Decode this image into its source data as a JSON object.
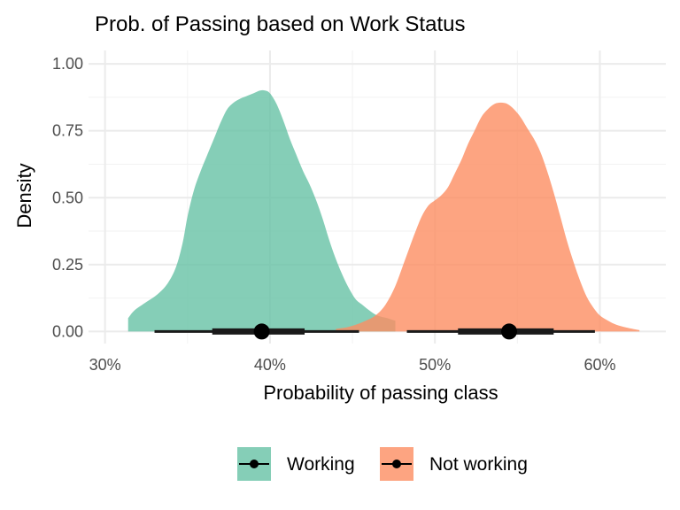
{
  "chart_data": {
    "type": "area",
    "title": "Prob. of Passing based on Work Status",
    "xlabel": "Probability of passing class",
    "ylabel": "Density",
    "xlim": [
      0.29,
      0.64
    ],
    "ylim": [
      -0.045,
      1.05
    ],
    "x_ticks": [
      0.3,
      0.4,
      0.5,
      0.6
    ],
    "x_tick_labels": [
      "30%",
      "40%",
      "50%",
      "60%"
    ],
    "y_ticks": [
      0,
      0.25,
      0.5,
      0.75,
      1.0
    ],
    "y_tick_labels": [
      "0.00",
      "0.25",
      "0.50",
      "0.75",
      "1.00"
    ],
    "grid": true,
    "legend_position": "bottom",
    "series": [
      {
        "name": "Working",
        "color": "#66c2a5",
        "density": {
          "x": [
            0.314,
            0.318,
            0.325,
            0.332,
            0.338,
            0.343,
            0.347,
            0.35,
            0.354,
            0.358,
            0.362,
            0.366,
            0.37,
            0.374,
            0.378,
            0.382,
            0.386,
            0.39,
            0.394,
            0.397,
            0.4,
            0.404,
            0.408,
            0.412,
            0.416,
            0.42,
            0.424,
            0.428,
            0.432,
            0.436,
            0.44,
            0.444,
            0.448,
            0.452,
            0.456,
            0.46,
            0.465,
            0.471,
            0.476
          ],
          "y": [
            0.05,
            0.08,
            0.11,
            0.14,
            0.18,
            0.24,
            0.33,
            0.43,
            0.53,
            0.6,
            0.66,
            0.72,
            0.78,
            0.83,
            0.855,
            0.87,
            0.88,
            0.89,
            0.9,
            0.9,
            0.89,
            0.85,
            0.79,
            0.72,
            0.66,
            0.6,
            0.55,
            0.49,
            0.42,
            0.34,
            0.27,
            0.21,
            0.16,
            0.12,
            0.1,
            0.08,
            0.06,
            0.05,
            0.04
          ]
        },
        "interval": {
          "point": 0.395,
          "inner": [
            0.365,
            0.421
          ],
          "outer": [
            0.33,
            0.454
          ]
        }
      },
      {
        "name": "Not working",
        "color": "#fc8d62",
        "density": {
          "x": [
            0.44,
            0.446,
            0.452,
            0.458,
            0.464,
            0.47,
            0.476,
            0.482,
            0.488,
            0.492,
            0.496,
            0.5,
            0.504,
            0.508,
            0.512,
            0.516,
            0.52,
            0.524,
            0.528,
            0.532,
            0.536,
            0.54,
            0.544,
            0.548,
            0.552,
            0.556,
            0.56,
            0.564,
            0.568,
            0.572,
            0.576,
            0.58,
            0.584,
            0.588,
            0.592,
            0.596,
            0.6,
            0.605,
            0.61,
            0.616,
            0.624
          ],
          "y": [
            0.01,
            0.015,
            0.025,
            0.04,
            0.06,
            0.1,
            0.17,
            0.27,
            0.37,
            0.43,
            0.47,
            0.49,
            0.51,
            0.54,
            0.59,
            0.64,
            0.7,
            0.75,
            0.8,
            0.83,
            0.85,
            0.855,
            0.85,
            0.83,
            0.8,
            0.76,
            0.72,
            0.67,
            0.6,
            0.52,
            0.43,
            0.34,
            0.26,
            0.19,
            0.13,
            0.09,
            0.06,
            0.04,
            0.025,
            0.015,
            0.005
          ]
        },
        "interval": {
          "point": 0.545,
          "inner": [
            0.514,
            0.572
          ],
          "outer": [
            0.483,
            0.597
          ]
        }
      }
    ]
  }
}
